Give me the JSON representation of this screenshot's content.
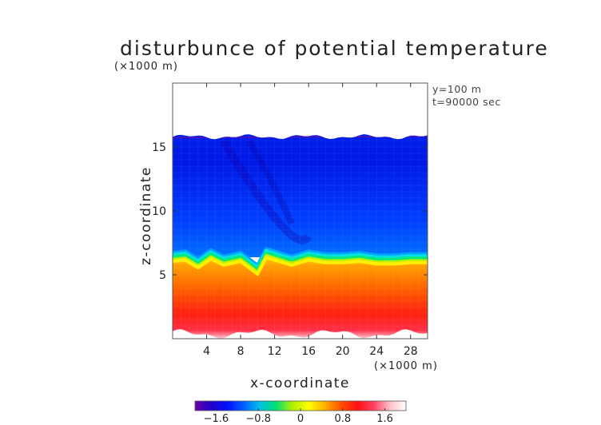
{
  "figure": {
    "title": "disturbunce of potential temperature",
    "y_scale_note": "(×1000 m)",
    "x_scale_note": "(×1000 m)",
    "info_lines": [
      "y=100  m",
      "t=90000 sec"
    ]
  },
  "chart_data": {
    "type": "heatmap",
    "title": "disturbunce of potential temperature",
    "xlabel": "x-coordinate",
    "ylabel": "z-coordinate",
    "x_unit_label": "(×1000 m)",
    "y_unit_label": "(×1000 m)",
    "xlim": [
      0,
      30
    ],
    "ylim": [
      0,
      20
    ],
    "x_ticks": [
      4,
      8,
      12,
      16,
      20,
      24,
      28
    ],
    "x_tick_labels": [
      "4",
      "8",
      "12",
      "16",
      "20",
      "24",
      "28"
    ],
    "y_ticks": [
      5,
      10,
      15
    ],
    "y_tick_labels": [
      "5",
      "10",
      "15"
    ],
    "colorbar": {
      "min": -2.0,
      "max": 2.0,
      "ticks": [
        -1.6,
        -0.8,
        0,
        0.8,
        1.6
      ],
      "tick_labels": [
        "−1.6",
        "−0.8",
        "0",
        "0.8",
        "1.6"
      ],
      "colors": [
        "#6a00a8",
        "#1f00c8",
        "#0010ff",
        "#0060ff",
        "#00c0e8",
        "#00e070",
        "#b0f000",
        "#ffff00",
        "#ffb000",
        "#ff5000",
        "#ff1010",
        "#ff4060",
        "#ffc0c8",
        "#ffffff"
      ]
    },
    "field": {
      "domain_top_km": 15.8,
      "interface_mean_km": 6.0,
      "interface_profile": [
        [
          0,
          6.2
        ],
        [
          1.5,
          6.3
        ],
        [
          3,
          5.7
        ],
        [
          4.5,
          6.4
        ],
        [
          6,
          5.9
        ],
        [
          8,
          6.2
        ],
        [
          10,
          5.2
        ],
        [
          11,
          6.5
        ],
        [
          12.5,
          6.2
        ],
        [
          14,
          5.9
        ],
        [
          16,
          6.3
        ],
        [
          18,
          6.1
        ],
        [
          20,
          6.1
        ],
        [
          22,
          6.2
        ],
        [
          24,
          6.0
        ],
        [
          26,
          6.0
        ],
        [
          28,
          6.1
        ],
        [
          30,
          6.1
        ]
      ],
      "upper_value_range": [
        -1.3,
        -0.7
      ],
      "lower_value_near_interface": 0.9,
      "lower_value_near_ground": 1.8
    },
    "annotations": [
      "y=100  m",
      "t=90000 sec"
    ]
  }
}
